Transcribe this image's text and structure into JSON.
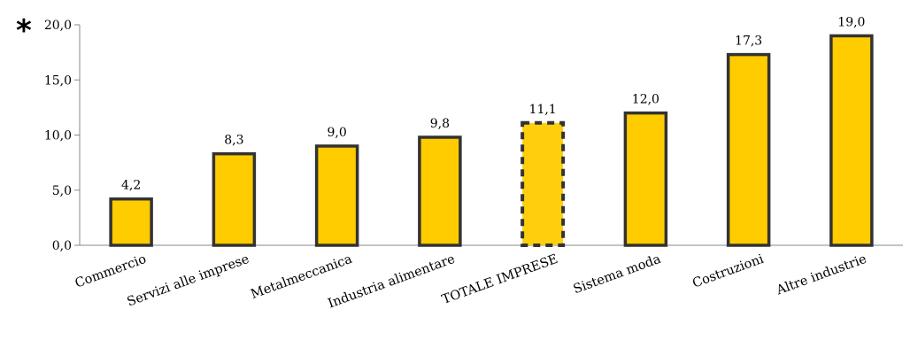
{
  "chart_data": {
    "type": "bar",
    "marker": "*",
    "categories": [
      "Commercio",
      "Servizi alle imprese",
      "Metalmeccanica",
      "Industria alimentare",
      "TOTALE IMPRESE",
      "Sistema moda",
      "Costruzioni",
      "Altre industrie"
    ],
    "values": [
      4.2,
      8.3,
      9.0,
      9.8,
      11.1,
      12.0,
      17.3,
      19.0
    ],
    "value_labels": [
      "4,2",
      "8,3",
      "9,0",
      "9,8",
      "11,1",
      "12,0",
      "17,3",
      "19,0"
    ],
    "highlight_category": "TOTALE IMPRESE",
    "yticks": [
      "0,0",
      "5,0",
      "10,0",
      "15,0",
      "20,0"
    ],
    "ylim": [
      0,
      20
    ],
    "title": "",
    "xlabel": "",
    "ylabel": "",
    "grid": false,
    "colors": {
      "bar_fill": "#FFCC00",
      "bar_stroke": "#333333",
      "highlight_stroke": "#333333",
      "axis": "#888888"
    }
  }
}
